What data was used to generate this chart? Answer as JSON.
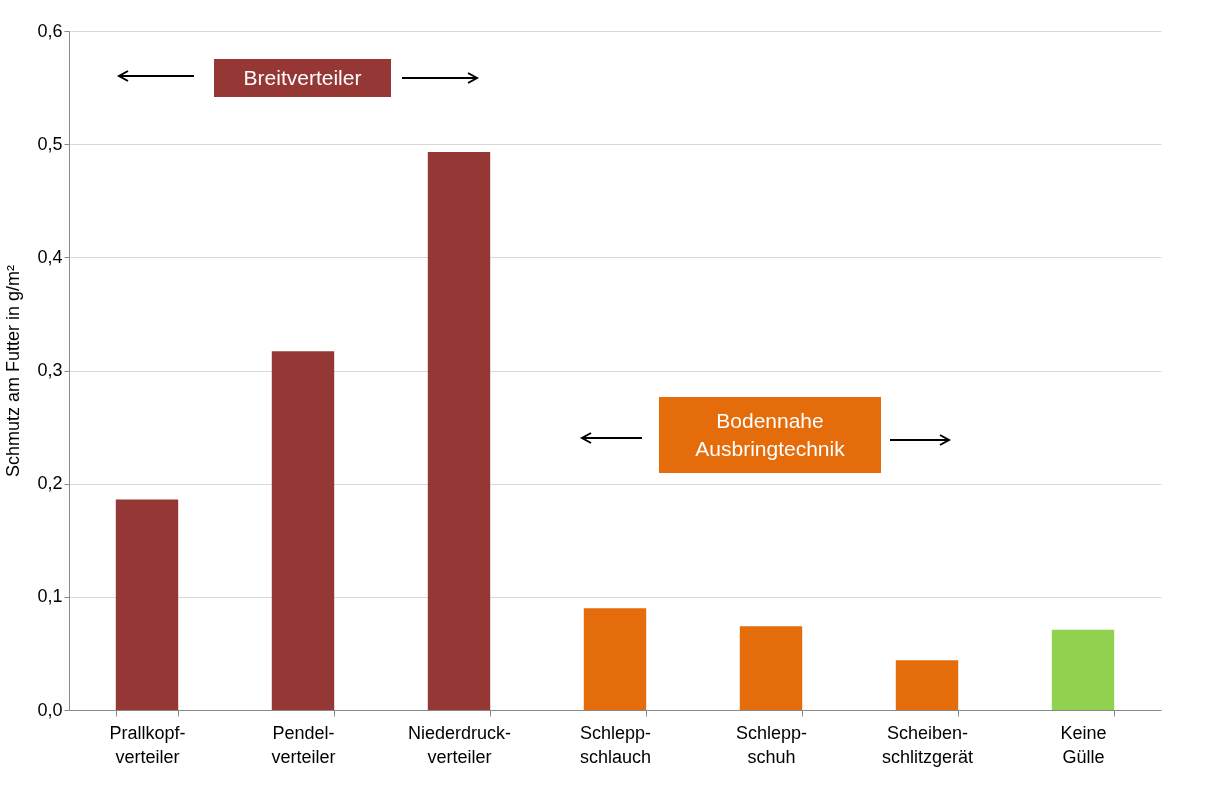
{
  "chart_data": {
    "type": "bar",
    "ylabel": "Schmutz am Futter in g/m²",
    "categories": [
      "Prallkopf-\nverteiler",
      "Pendel-\nverteiler",
      "Niederdruck-\nverteiler",
      "Schlepp-\nschlauch",
      "Schlepp-\nschuh",
      "Scheiben-\nschlitzgerät",
      "Keine\nGülle"
    ],
    "values": [
      0.186,
      0.317,
      0.493,
      0.09,
      0.074,
      0.044,
      0.071
    ],
    "colors": [
      "#953735",
      "#953735",
      "#953735",
      "#e46c0a",
      "#e46c0a",
      "#e46c0a",
      "#92d050"
    ],
    "ylim": [
      0,
      0.6
    ],
    "yticks": [
      {
        "value": 0,
        "label": "0,0"
      },
      {
        "value": 0.1,
        "label": "0,1"
      },
      {
        "value": 0.2,
        "label": "0,2"
      },
      {
        "value": 0.3,
        "label": "0,3"
      },
      {
        "value": 0.4,
        "label": "0,4"
      },
      {
        "value": 0.5,
        "label": "0,5"
      },
      {
        "value": 0.6,
        "label": "0,6"
      }
    ],
    "grid": "y",
    "annotations": [
      "Breitverteiler",
      "Bodennahe\nAusbringtechnik"
    ]
  }
}
